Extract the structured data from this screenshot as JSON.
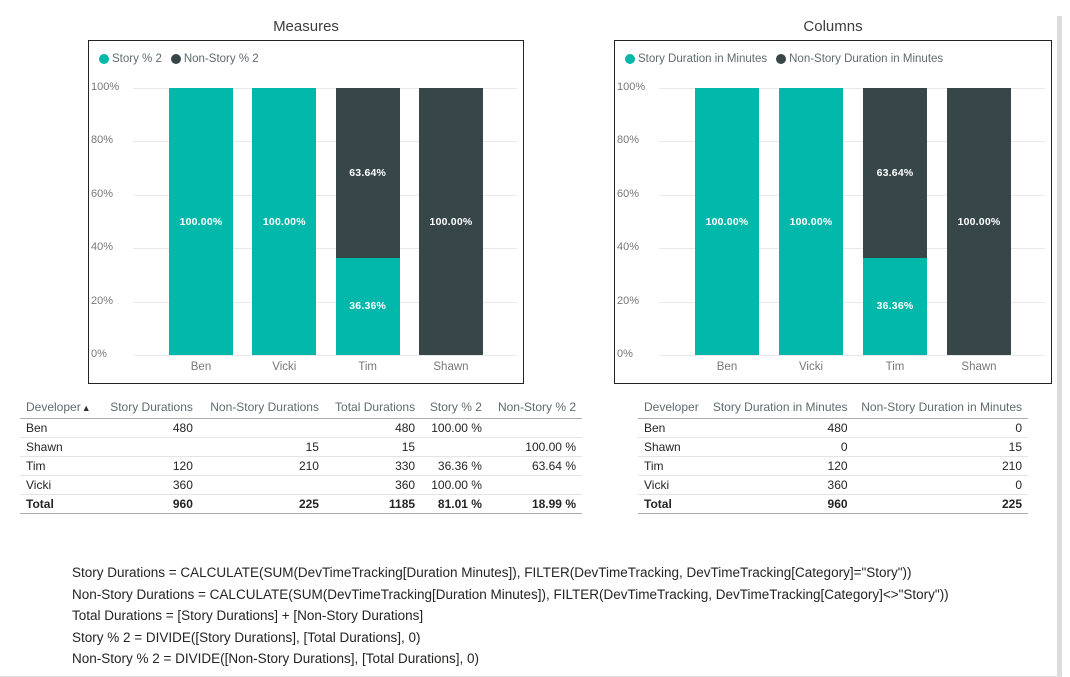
{
  "colors": {
    "story": "#01b8aa",
    "non_story": "#374649",
    "grid_line": "#e9e9e9",
    "axis_text": "#777777",
    "title_text": "#3d3d3d",
    "legend_text": "#5f6b6d",
    "bar_label_text": "#ffffff",
    "table_header_text": "#5f6b6d",
    "table_text": "#252423",
    "box_border": "#252423"
  },
  "chart_data": [
    {
      "type": "bar",
      "stacked": true,
      "values_are_percent": true,
      "title": "Measures",
      "categories": [
        "Ben",
        "Vicki",
        "Tim",
        "Shawn"
      ],
      "series": [
        {
          "name": "Story % 2",
          "color": "#01b8aa",
          "values": [
            100,
            100,
            36.36,
            0
          ],
          "labels": [
            "100.00%",
            "100.00%",
            "36.36%",
            ""
          ]
        },
        {
          "name": "Non-Story % 2",
          "color": "#374649",
          "values": [
            0,
            0,
            63.64,
            100
          ],
          "labels": [
            "",
            "",
            "63.64%",
            "100.00%"
          ]
        }
      ],
      "y_axis": {
        "ticks": [
          "100%",
          "80%",
          "60%",
          "40%",
          "20%",
          "0%"
        ],
        "min": 0,
        "max": 100
      },
      "xlabel": "",
      "ylabel": "",
      "legend_position": "top-left",
      "grid": true
    },
    {
      "type": "bar",
      "stacked": true,
      "values_are_percent": true,
      "title": "Columns",
      "categories": [
        "Ben",
        "Vicki",
        "Tim",
        "Shawn"
      ],
      "series": [
        {
          "name": "Story Duration in Minutes",
          "color": "#01b8aa",
          "values": [
            100,
            100,
            36.36,
            0
          ],
          "labels": [
            "100.00%",
            "100.00%",
            "36.36%",
            ""
          ]
        },
        {
          "name": "Non-Story Duration in Minutes",
          "color": "#374649",
          "values": [
            0,
            0,
            63.64,
            100
          ],
          "labels": [
            "",
            "",
            "63.64%",
            "100.00%"
          ]
        }
      ],
      "y_axis": {
        "ticks": [
          "100%",
          "80%",
          "60%",
          "40%",
          "20%",
          "0%"
        ],
        "min": 0,
        "max": 100
      },
      "xlabel": "",
      "ylabel": "",
      "legend_position": "top-left",
      "grid": true
    }
  ],
  "tables": {
    "left": {
      "columns": [
        "Developer",
        "Story Durations",
        "Non-Story Durations",
        "Total Durations",
        "Story % 2",
        "Non-Story % 2"
      ],
      "sorted_column": 0,
      "sort_icon": "▲",
      "rows": [
        [
          "Ben",
          "480",
          "",
          "480",
          "100.00 %",
          ""
        ],
        [
          "Shawn",
          "",
          "15",
          "15",
          "",
          "100.00 %"
        ],
        [
          "Tim",
          "120",
          "210",
          "330",
          "36.36 %",
          "63.64 %"
        ],
        [
          "Vicki",
          "360",
          "",
          "360",
          "100.00 %",
          ""
        ]
      ],
      "total_row": [
        "Total",
        "960",
        "225",
        "1185",
        "81.01 %",
        "18.99 %"
      ]
    },
    "right": {
      "columns": [
        "Developer",
        "Story Duration in Minutes",
        "Non-Story Duration in Minutes"
      ],
      "rows": [
        [
          "Ben",
          "480",
          "0"
        ],
        [
          "Shawn",
          "0",
          "15"
        ],
        [
          "Tim",
          "120",
          "210"
        ],
        [
          "Vicki",
          "360",
          "0"
        ]
      ],
      "total_row": [
        "Total",
        "960",
        "225"
      ]
    }
  },
  "formulas": [
    "Story Durations = CALCULATE(SUM(DevTimeTracking[Duration Minutes]), FILTER(DevTimeTracking, DevTimeTracking[Category]=\"Story\"))",
    "Non-Story Durations = CALCULATE(SUM(DevTimeTracking[Duration Minutes]), FILTER(DevTimeTracking, DevTimeTracking[Category]<>\"Story\"))",
    "Total Durations = [Story Durations] + [Non-Story Durations]",
    "Story % 2 = DIVIDE([Story Durations], [Total Durations], 0)",
    "Non-Story % 2 = DIVIDE([Non-Story Durations], [Total Durations], 0)"
  ]
}
